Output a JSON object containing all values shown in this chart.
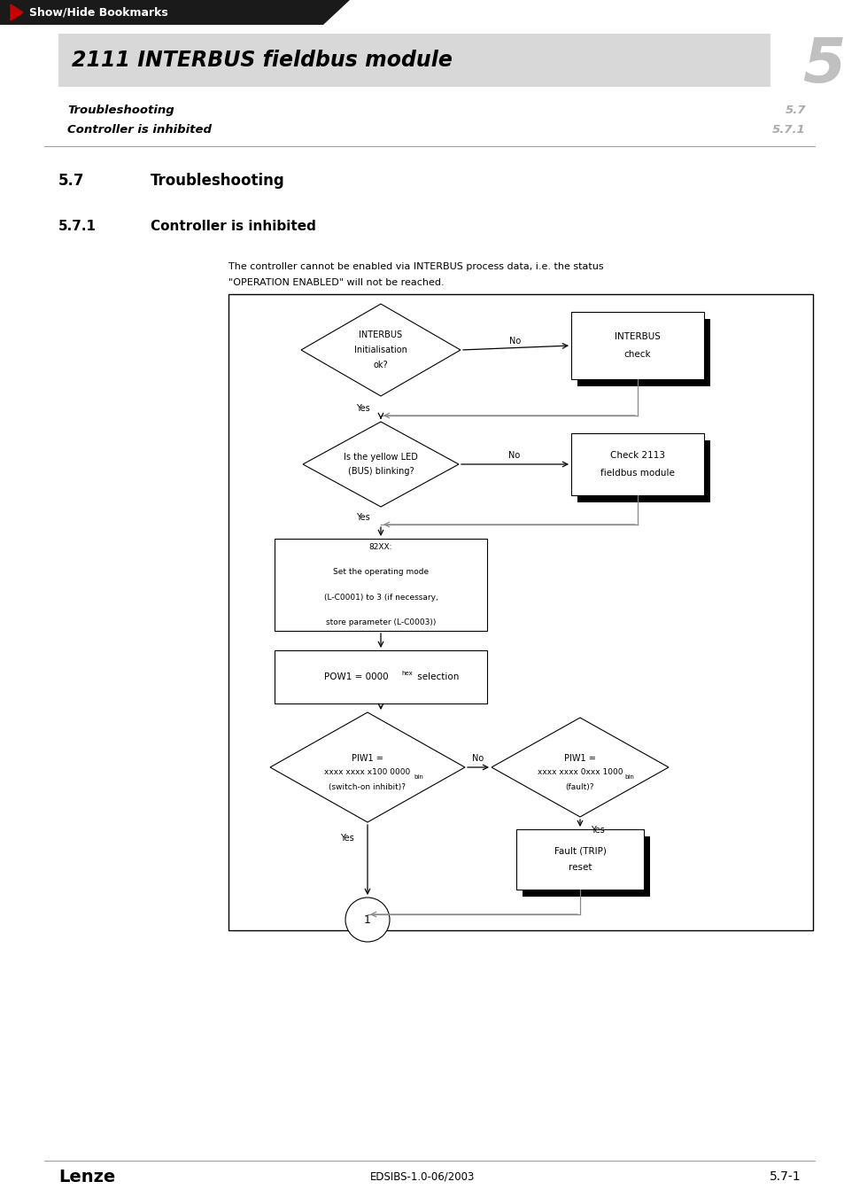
{
  "page_bg": "#ffffff",
  "header_bar_color": "#1a1a1a",
  "header_text": "Show/Hide Bookmarks",
  "header_arrow_color": "#cc0000",
  "title_bg": "#d8d8d8",
  "title_text": "2111 INTERBUS fieldbus module",
  "chapter_number": "5",
  "subtitle1": "Troubleshooting",
  "subtitle1_num": "5.7",
  "subtitle2": "Controller is inhibited",
  "subtitle2_num": "5.7.1",
  "footer_left": "Lenze",
  "footer_center": "EDSIBS-1.0-06/2003",
  "footer_right": "5.7-1",
  "desc_line1": "The controller cannot be enabled via INTERBUS process data, i.e. the status",
  "desc_line2": "\"OPERATION ENABLED\" will not be reached."
}
